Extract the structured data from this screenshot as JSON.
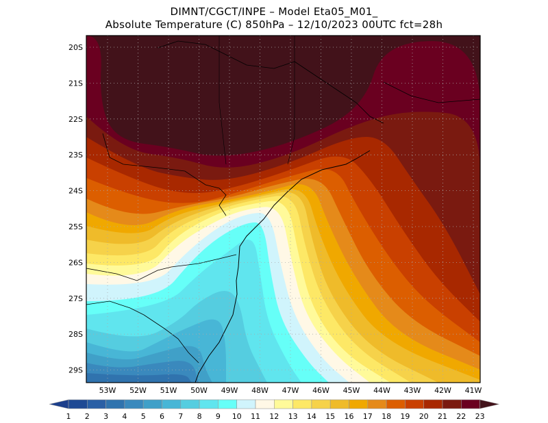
{
  "title": {
    "line1": "DIMNT/CGCT/INPE –   Model Eta05_M01_",
    "line2": "Absolute Temperature (C) 850hPa –   12/10/2023 00UTC fct=28h"
  },
  "axes": {
    "lat_labels": [
      "20S",
      "21S",
      "22S",
      "23S",
      "24S",
      "25S",
      "26S",
      "27S",
      "28S",
      "29S"
    ],
    "lon_labels": [
      "53W",
      "52W",
      "51W",
      "50W",
      "49W",
      "48W",
      "47W",
      "46W",
      "45W",
      "44W",
      "43W",
      "42W",
      "41W"
    ]
  },
  "colorbar": {
    "labels": [
      "1",
      "2",
      "3",
      "4",
      "5",
      "6",
      "7",
      "8",
      "9",
      "10",
      "11",
      "12",
      "13",
      "14",
      "15",
      "16",
      "17",
      "18",
      "19",
      "20",
      "21",
      "22",
      "23"
    ],
    "under_color": "#1c3f8c",
    "over_color": "#42121a",
    "colors": [
      "#1f4a94",
      "#2a5fa5",
      "#3073ae",
      "#3a89bd",
      "#40a0c8",
      "#48b6d6",
      "#55cde0",
      "#60e5ee",
      "#66fff8",
      "#d0f4fc",
      "#fff8e6",
      "#fffa9a",
      "#fde866",
      "#f6d24a",
      "#efbb2a",
      "#f0a800",
      "#e58a1a",
      "#dc5e00",
      "#c94000",
      "#a82800",
      "#7a1a10",
      "#6a0020"
    ]
  }
}
